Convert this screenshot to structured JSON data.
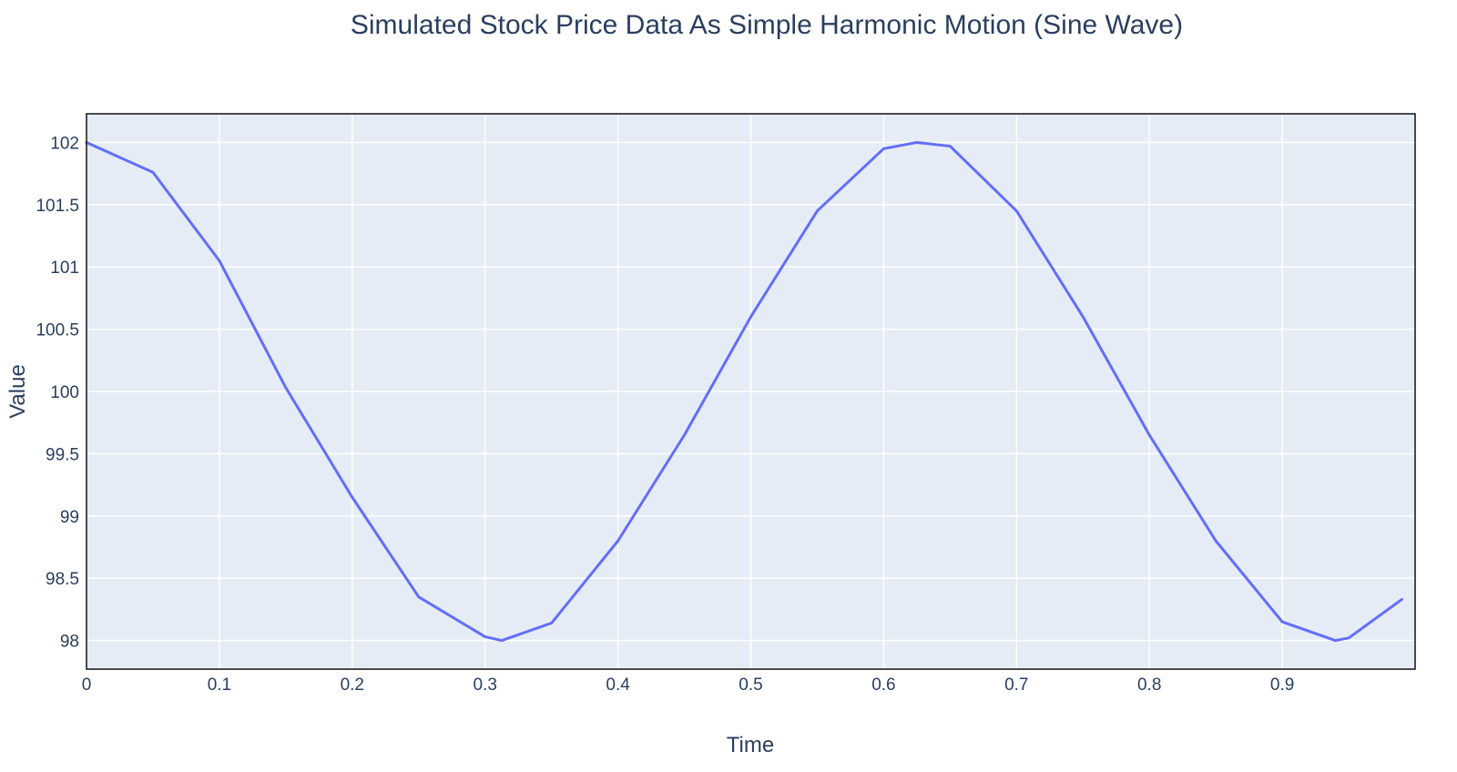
{
  "chart_data": {
    "type": "line",
    "title": "Simulated Stock Price Data As Simple Harmonic Motion (Sine Wave)",
    "xlabel": "Time",
    "ylabel": "Value",
    "xlim": [
      0,
      1
    ],
    "ylim": [
      97.77,
      102.23
    ],
    "x_ticks": [
      0,
      0.1,
      0.2,
      0.3,
      0.4,
      0.5,
      0.6,
      0.7,
      0.8,
      0.9
    ],
    "x_tick_labels": [
      "0",
      "0.1",
      "0.2",
      "0.3",
      "0.4",
      "0.5",
      "0.6",
      "0.7",
      "0.8",
      "0.9"
    ],
    "y_ticks": [
      98,
      98.5,
      99,
      99.5,
      100,
      100.5,
      101,
      101.5,
      102
    ],
    "y_tick_labels": [
      "98",
      "98.5",
      "99",
      "99.5",
      "100",
      "100.5",
      "101",
      "101.5",
      "102"
    ],
    "grid": true,
    "plot_background": "#e5ecf6",
    "line_color": "#636efa",
    "text_color": "#2a3f5f",
    "series": [
      {
        "x": [
          0,
          0.05,
          0.1,
          0.15,
          0.2,
          0.25,
          0.3,
          0.3125,
          0.35,
          0.4,
          0.45,
          0.5,
          0.55,
          0.6,
          0.625,
          0.65,
          0.7,
          0.75,
          0.8,
          0.85,
          0.9,
          0.94,
          0.95,
          0.99
        ],
        "values": [
          102.0,
          101.76,
          101.05,
          100.03,
          99.15,
          98.35,
          98.03,
          98.0,
          98.14,
          98.8,
          99.65,
          100.6,
          101.45,
          101.95,
          102.0,
          101.97,
          101.45,
          100.6,
          99.65,
          98.8,
          98.15,
          98.0,
          98.02,
          98.33
        ]
      }
    ]
  }
}
